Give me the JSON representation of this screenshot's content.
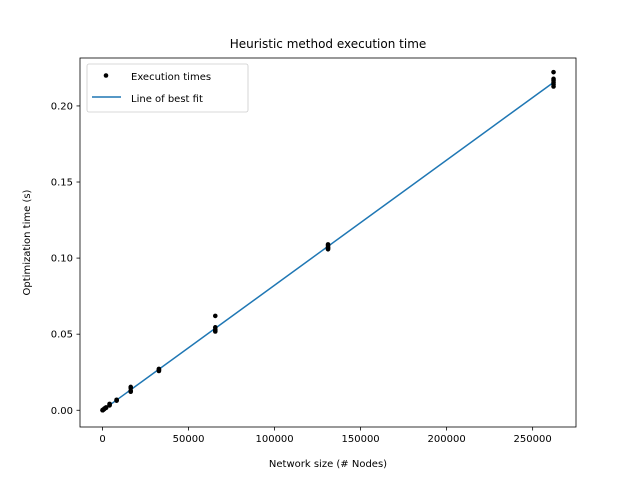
{
  "chart_data": {
    "type": "scatter",
    "title": "Heuristic method execution time",
    "xlabel": "Network size (# Nodes)",
    "ylabel": "Optimization time (s)",
    "xlim": [
      -13100,
      275200
    ],
    "ylim": [
      -0.011,
      0.2315
    ],
    "xticks": [
      0,
      50000,
      100000,
      150000,
      200000,
      250000
    ],
    "xtick_labels": [
      "0",
      "50000",
      "100000",
      "150000",
      "200000",
      "250000"
    ],
    "yticks": [
      0.0,
      0.05,
      0.1,
      0.15,
      0.2
    ],
    "ytick_labels": [
      "0.00",
      "0.05",
      "0.10",
      "0.15",
      "0.20"
    ],
    "grid": false,
    "legend_position": "top-left",
    "series": [
      {
        "name": "Execution times",
        "kind": "points",
        "color": "#000000",
        "points": [
          [
            16,
            0.0
          ],
          [
            32,
            0.0
          ],
          [
            64,
            0.0001
          ],
          [
            128,
            0.0001
          ],
          [
            256,
            0.0002
          ],
          [
            512,
            0.0004
          ],
          [
            1024,
            0.0008
          ],
          [
            1024,
            0.0011
          ],
          [
            2048,
            0.0016
          ],
          [
            2048,
            0.0019
          ],
          [
            4096,
            0.0032
          ],
          [
            4096,
            0.0036
          ],
          [
            4096,
            0.0042
          ],
          [
            8192,
            0.0063
          ],
          [
            8192,
            0.0066
          ],
          [
            8192,
            0.0069
          ],
          [
            16384,
            0.0122
          ],
          [
            16384,
            0.0128
          ],
          [
            16384,
            0.0146
          ],
          [
            16384,
            0.0153
          ],
          [
            32768,
            0.0258
          ],
          [
            32768,
            0.0263
          ],
          [
            32768,
            0.0268
          ],
          [
            32768,
            0.0272
          ],
          [
            65536,
            0.0518
          ],
          [
            65536,
            0.0524
          ],
          [
            65536,
            0.0531
          ],
          [
            65536,
            0.0545
          ],
          [
            65536,
            0.062
          ],
          [
            131072,
            0.1058
          ],
          [
            131072,
            0.1065
          ],
          [
            131072,
            0.1072
          ],
          [
            131072,
            0.1083
          ],
          [
            131072,
            0.109
          ],
          [
            262144,
            0.2128
          ],
          [
            262144,
            0.2142
          ],
          [
            262144,
            0.2155
          ],
          [
            262144,
            0.2168
          ],
          [
            262144,
            0.2178
          ],
          [
            262144,
            0.2222
          ]
        ]
      },
      {
        "name": "Line of best fit",
        "kind": "line",
        "color": "#1f77b4",
        "points": [
          [
            0,
            0.0
          ],
          [
            262144,
            0.2155
          ]
        ]
      }
    ]
  }
}
